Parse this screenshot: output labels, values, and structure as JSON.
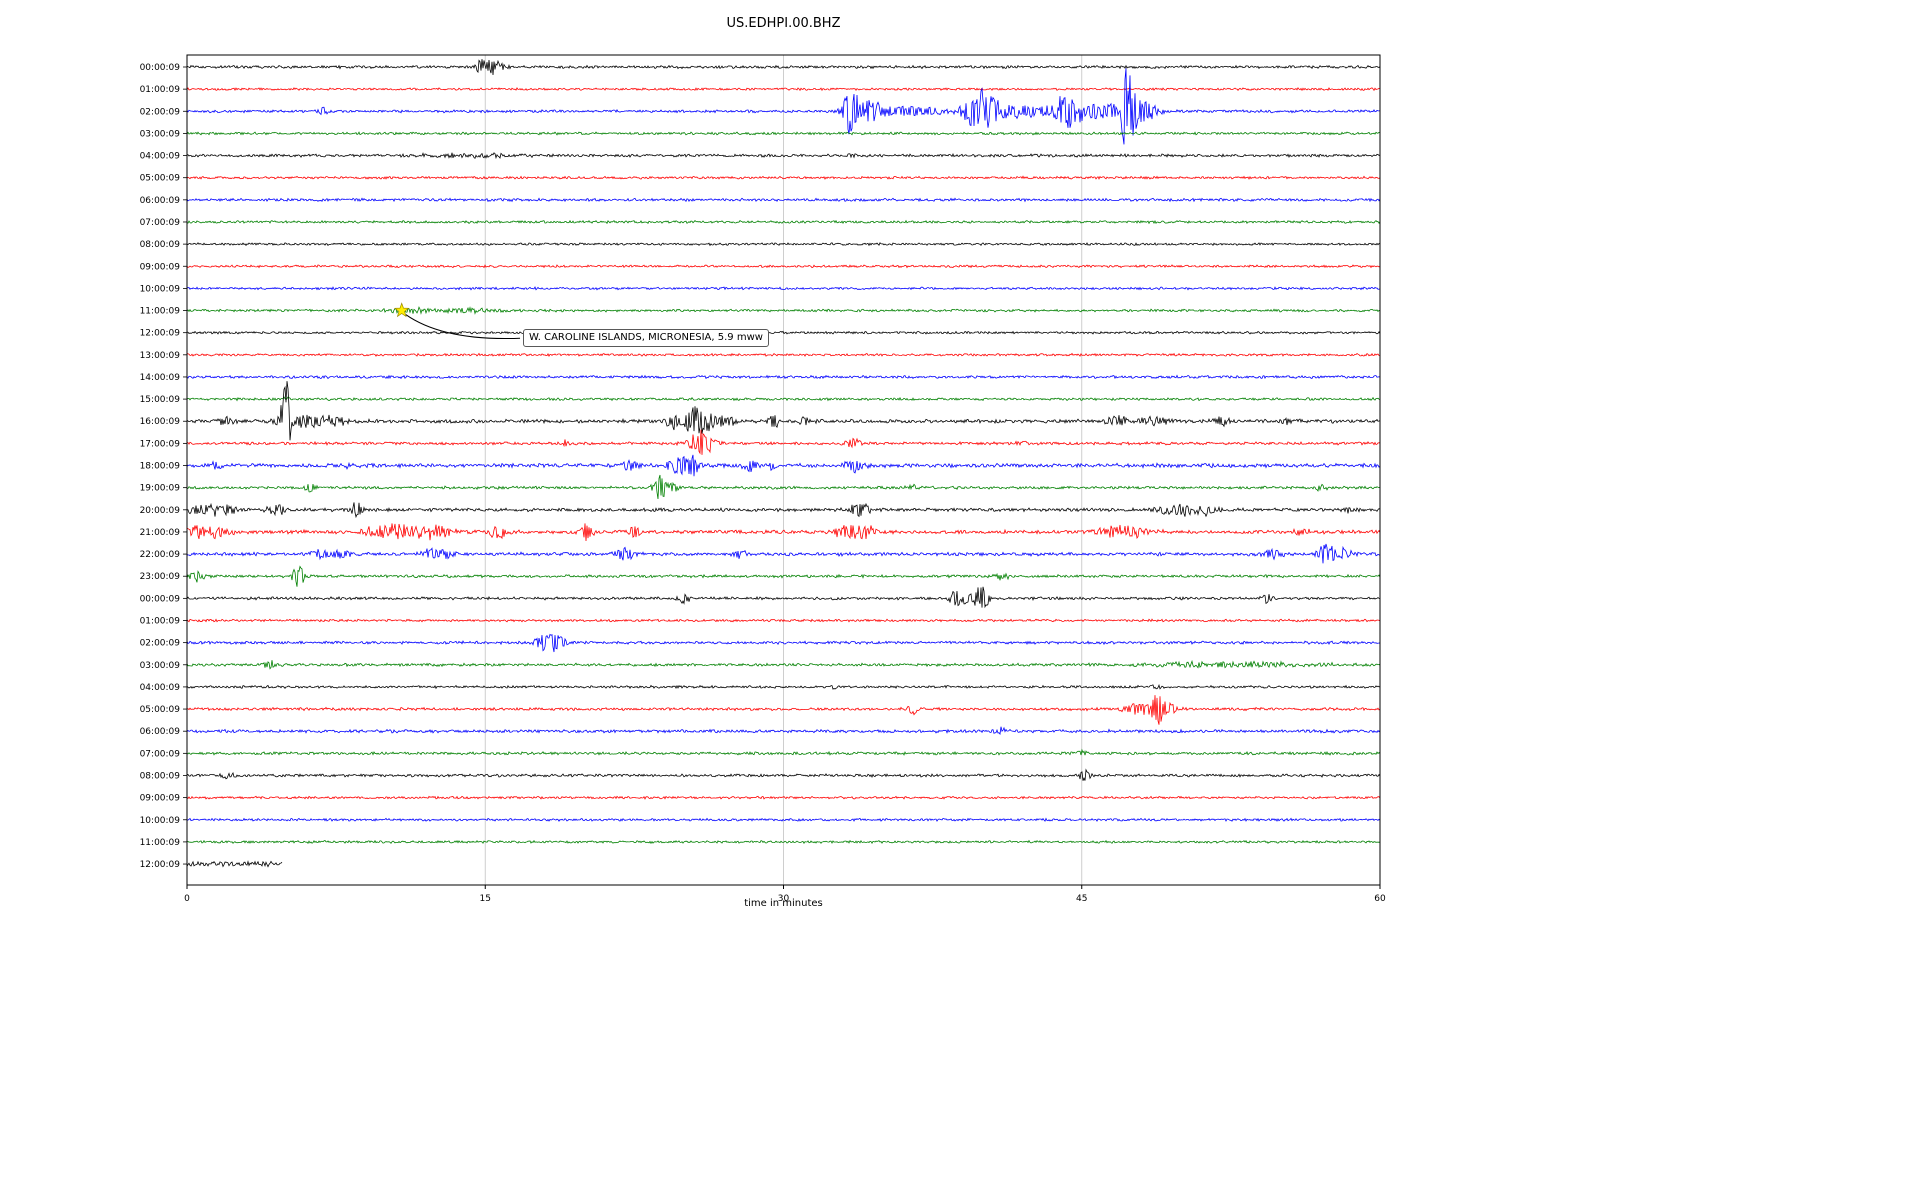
{
  "title": "US.EDHPI.00.BHZ",
  "chart_data": {
    "type": "line",
    "subtype": "helicorder-seismogram",
    "title": "US.EDHPI.00.BHZ",
    "xlabel": "time in minutes",
    "xlim": [
      0,
      60
    ],
    "x_ticks": [
      0,
      15,
      30,
      45,
      60
    ],
    "grid": "vertical-gridlines-at-ticks",
    "legend": "none",
    "trace_colors": [
      "#000000",
      "#ff0000",
      "#0000ff",
      "#008000"
    ],
    "annotation": {
      "text": "W. CAROLINE ISLANDS, MICRONESIA, 5.9 mww",
      "row": 11,
      "t": 10.8,
      "label_t": 16.9,
      "label_row": 12.25,
      "marker": "star",
      "marker_color": "#ffee00"
    },
    "rows": [
      {
        "label": "00:00:09",
        "noise": 1.0,
        "events": [
          {
            "t": 14.8,
            "a": 8,
            "w": 0.25
          },
          {
            "t": 15.3,
            "a": 9,
            "w": 0.35
          },
          {
            "t": 15.8,
            "a": 4,
            "w": 0.3
          }
        ]
      },
      {
        "label": "01:00:09",
        "noise": 0.8,
        "events": []
      },
      {
        "label": "02:00:09",
        "noise": 1.0,
        "events": [
          {
            "t": 6.8,
            "a": 4,
            "w": 0.3
          },
          {
            "t": 33.4,
            "a": 30,
            "w": 0.35
          },
          {
            "t": 34.2,
            "a": 10,
            "w": 0.8
          },
          {
            "t": 36.0,
            "a": 5,
            "w": 2.5
          },
          {
            "t": 40.0,
            "a": 22,
            "w": 0.9
          },
          {
            "t": 42.0,
            "a": 6,
            "w": 3.0
          },
          {
            "t": 44.3,
            "a": 18,
            "w": 0.6
          },
          {
            "t": 46.0,
            "a": 8,
            "w": 2.0
          },
          {
            "t": 47.3,
            "a": 45,
            "w": 0.3
          },
          {
            "t": 48.0,
            "a": 12,
            "w": 0.7
          }
        ]
      },
      {
        "label": "03:00:09",
        "noise": 0.9,
        "events": []
      },
      {
        "label": "04:00:09",
        "noise": 1.0,
        "events": [
          {
            "t": 14.0,
            "a": 2,
            "w": 3.0
          },
          {
            "t": 33.4,
            "a": 3,
            "w": 0.3
          }
        ]
      },
      {
        "label": "05:00:09",
        "noise": 0.9,
        "events": []
      },
      {
        "label": "06:00:09",
        "noise": 1.0,
        "events": []
      },
      {
        "label": "07:00:09",
        "noise": 0.9,
        "events": []
      },
      {
        "label": "08:00:09",
        "noise": 0.85,
        "events": []
      },
      {
        "label": "09:00:09",
        "noise": 0.85,
        "events": []
      },
      {
        "label": "10:00:09",
        "noise": 0.85,
        "events": []
      },
      {
        "label": "11:00:09",
        "noise": 0.9,
        "events": [
          {
            "t": 11.3,
            "a": 2.5,
            "w": 1.5
          },
          {
            "t": 14.0,
            "a": 2,
            "w": 2.0
          }
        ]
      },
      {
        "label": "12:00:09",
        "noise": 0.85,
        "events": []
      },
      {
        "label": "13:00:09",
        "noise": 0.85,
        "events": []
      },
      {
        "label": "14:00:09",
        "noise": 1.0,
        "events": []
      },
      {
        "label": "15:00:09",
        "noise": 0.9,
        "events": [
          {
            "t": 5.0,
            "a": 3,
            "w": 0.2
          }
        ]
      },
      {
        "label": "16:00:09",
        "noise": 1.3,
        "events": [
          {
            "t": 2.0,
            "a": 4,
            "w": 0.5
          },
          {
            "t": 4.7,
            "a": 10,
            "w": 0.3
          },
          {
            "t": 5.0,
            "a": 45,
            "w": 0.22
          },
          {
            "t": 5.6,
            "a": 8,
            "w": 0.4
          },
          {
            "t": 6.5,
            "a": 6,
            "w": 0.8
          },
          {
            "t": 7.5,
            "a": 5,
            "w": 0.5
          },
          {
            "t": 24.5,
            "a": 8,
            "w": 0.4
          },
          {
            "t": 25.3,
            "a": 12,
            "w": 0.3
          },
          {
            "t": 25.8,
            "a": 14,
            "w": 0.35
          },
          {
            "t": 26.3,
            "a": 10,
            "w": 0.3
          },
          {
            "t": 27.1,
            "a": 6,
            "w": 0.5
          },
          {
            "t": 29.5,
            "a": 7,
            "w": 0.3
          },
          {
            "t": 31.0,
            "a": 4,
            "w": 0.4
          },
          {
            "t": 46.8,
            "a": 5,
            "w": 0.6
          },
          {
            "t": 48.5,
            "a": 4,
            "w": 0.8
          },
          {
            "t": 52.0,
            "a": 4,
            "w": 0.5
          },
          {
            "t": 55.5,
            "a": 3,
            "w": 0.5
          }
        ]
      },
      {
        "label": "17:00:09",
        "noise": 1.0,
        "events": [
          {
            "t": 19.0,
            "a": 3,
            "w": 0.2
          },
          {
            "t": 25.6,
            "a": 8,
            "w": 0.5
          },
          {
            "t": 26.1,
            "a": 10,
            "w": 0.5
          },
          {
            "t": 33.5,
            "a": 6,
            "w": 0.4
          },
          {
            "t": 42.0,
            "a": 2.5,
            "w": 0.3
          }
        ]
      },
      {
        "label": "18:00:09",
        "noise": 1.4,
        "events": [
          {
            "t": 1.5,
            "a": 4,
            "w": 0.3
          },
          {
            "t": 8.0,
            "a": 3,
            "w": 0.4
          },
          {
            "t": 22.3,
            "a": 6,
            "w": 0.5
          },
          {
            "t": 24.8,
            "a": 10,
            "w": 0.6
          },
          {
            "t": 25.5,
            "a": 8,
            "w": 0.4
          },
          {
            "t": 28.3,
            "a": 6,
            "w": 0.4
          },
          {
            "t": 29.5,
            "a": 4,
            "w": 0.3
          },
          {
            "t": 33.5,
            "a": 7,
            "w": 0.5
          }
        ]
      },
      {
        "label": "19:00:09",
        "noise": 1.0,
        "events": [
          {
            "t": 6.2,
            "a": 5,
            "w": 0.3
          },
          {
            "t": 23.8,
            "a": 12,
            "w": 0.35
          },
          {
            "t": 24.4,
            "a": 6,
            "w": 0.3
          },
          {
            "t": 36.5,
            "a": 3,
            "w": 0.3
          },
          {
            "t": 57.0,
            "a": 3,
            "w": 0.3
          }
        ]
      },
      {
        "label": "20:00:09",
        "noise": 1.2,
        "events": [
          {
            "t": 0.8,
            "a": 5,
            "w": 0.8
          },
          {
            "t": 1.8,
            "a": 6,
            "w": 0.6
          },
          {
            "t": 4.5,
            "a": 5,
            "w": 0.5
          },
          {
            "t": 8.5,
            "a": 8,
            "w": 0.3
          },
          {
            "t": 33.8,
            "a": 8,
            "w": 0.5
          },
          {
            "t": 49.8,
            "a": 5,
            "w": 1.2
          },
          {
            "t": 51.0,
            "a": 4,
            "w": 0.8
          },
          {
            "t": 58.5,
            "a": 3,
            "w": 0.4
          }
        ]
      },
      {
        "label": "21:00:09",
        "noise": 1.3,
        "events": [
          {
            "t": 0.5,
            "a": 6,
            "w": 1.0
          },
          {
            "t": 1.5,
            "a": 5,
            "w": 0.8
          },
          {
            "t": 9.8,
            "a": 5,
            "w": 1.2
          },
          {
            "t": 11.2,
            "a": 6,
            "w": 1.5
          },
          {
            "t": 12.5,
            "a": 5,
            "w": 1.0
          },
          {
            "t": 15.6,
            "a": 8,
            "w": 0.4
          },
          {
            "t": 20.1,
            "a": 9,
            "w": 0.3
          },
          {
            "t": 22.5,
            "a": 6,
            "w": 0.4
          },
          {
            "t": 33.3,
            "a": 7,
            "w": 0.8
          },
          {
            "t": 34.1,
            "a": 6,
            "w": 0.6
          },
          {
            "t": 46.6,
            "a": 5,
            "w": 1.0
          },
          {
            "t": 47.6,
            "a": 5,
            "w": 1.2
          },
          {
            "t": 56.0,
            "a": 3,
            "w": 0.5
          }
        ]
      },
      {
        "label": "22:00:09",
        "noise": 1.2,
        "events": [
          {
            "t": 6.8,
            "a": 5,
            "w": 0.6
          },
          {
            "t": 7.8,
            "a": 5,
            "w": 0.5
          },
          {
            "t": 12.3,
            "a": 6,
            "w": 0.6
          },
          {
            "t": 13.1,
            "a": 5,
            "w": 0.4
          },
          {
            "t": 22.0,
            "a": 7,
            "w": 0.5
          },
          {
            "t": 27.8,
            "a": 5,
            "w": 0.4
          },
          {
            "t": 54.5,
            "a": 5,
            "w": 0.8
          },
          {
            "t": 57.3,
            "a": 10,
            "w": 0.5
          },
          {
            "t": 58.1,
            "a": 6,
            "w": 0.5
          }
        ]
      },
      {
        "label": "23:00:09",
        "noise": 1.0,
        "events": [
          {
            "t": 0.5,
            "a": 5,
            "w": 0.5
          },
          {
            "t": 5.6,
            "a": 12,
            "w": 0.3
          },
          {
            "t": 41.0,
            "a": 5,
            "w": 0.3
          }
        ]
      },
      {
        "label": "00:00:09",
        "noise": 1.0,
        "events": [
          {
            "t": 25.0,
            "a": 6,
            "w": 0.3
          },
          {
            "t": 38.7,
            "a": 8,
            "w": 0.4
          },
          {
            "t": 39.4,
            "a": 6,
            "w": 0.5
          },
          {
            "t": 40.0,
            "a": 14,
            "w": 0.3
          },
          {
            "t": 54.3,
            "a": 6,
            "w": 0.3
          }
        ]
      },
      {
        "label": "01:00:09",
        "noise": 0.85,
        "events": []
      },
      {
        "label": "02:00:09",
        "noise": 1.0,
        "events": [
          {
            "t": 17.7,
            "a": 5,
            "w": 0.3
          },
          {
            "t": 18.2,
            "a": 12,
            "w": 0.4
          },
          {
            "t": 18.8,
            "a": 8,
            "w": 0.3
          }
        ]
      },
      {
        "label": "03:00:09",
        "noise": 1.0,
        "events": [
          {
            "t": 4.2,
            "a": 4,
            "w": 0.3
          },
          {
            "t": 52.0,
            "a": 2.5,
            "w": 5.0
          }
        ]
      },
      {
        "label": "04:00:09",
        "noise": 0.9,
        "events": [
          {
            "t": 32.5,
            "a": 3,
            "w": 0.3
          },
          {
            "t": 48.8,
            "a": 3,
            "w": 0.3
          }
        ]
      },
      {
        "label": "05:00:09",
        "noise": 1.0,
        "events": [
          {
            "t": 36.5,
            "a": 6,
            "w": 0.3
          },
          {
            "t": 47.8,
            "a": 6,
            "w": 0.8
          },
          {
            "t": 48.8,
            "a": 16,
            "w": 0.35
          },
          {
            "t": 49.4,
            "a": 6,
            "w": 0.4
          }
        ]
      },
      {
        "label": "06:00:09",
        "noise": 1.1,
        "events": [
          {
            "t": 41.0,
            "a": 3,
            "w": 0.5
          }
        ]
      },
      {
        "label": "07:00:09",
        "noise": 1.0,
        "events": [
          {
            "t": 45.0,
            "a": 3,
            "w": 0.3
          }
        ]
      },
      {
        "label": "08:00:09",
        "noise": 1.0,
        "events": [
          {
            "t": 2.0,
            "a": 3,
            "w": 0.5
          },
          {
            "t": 45.2,
            "a": 7,
            "w": 0.3
          }
        ]
      },
      {
        "label": "09:00:09",
        "noise": 0.85,
        "events": []
      },
      {
        "label": "10:00:09",
        "noise": 0.9,
        "events": []
      },
      {
        "label": "11:00:09",
        "noise": 0.9,
        "events": []
      },
      {
        "label": "12:00:09",
        "noise": 1.8,
        "events": [],
        "duration": 4.8
      }
    ]
  }
}
